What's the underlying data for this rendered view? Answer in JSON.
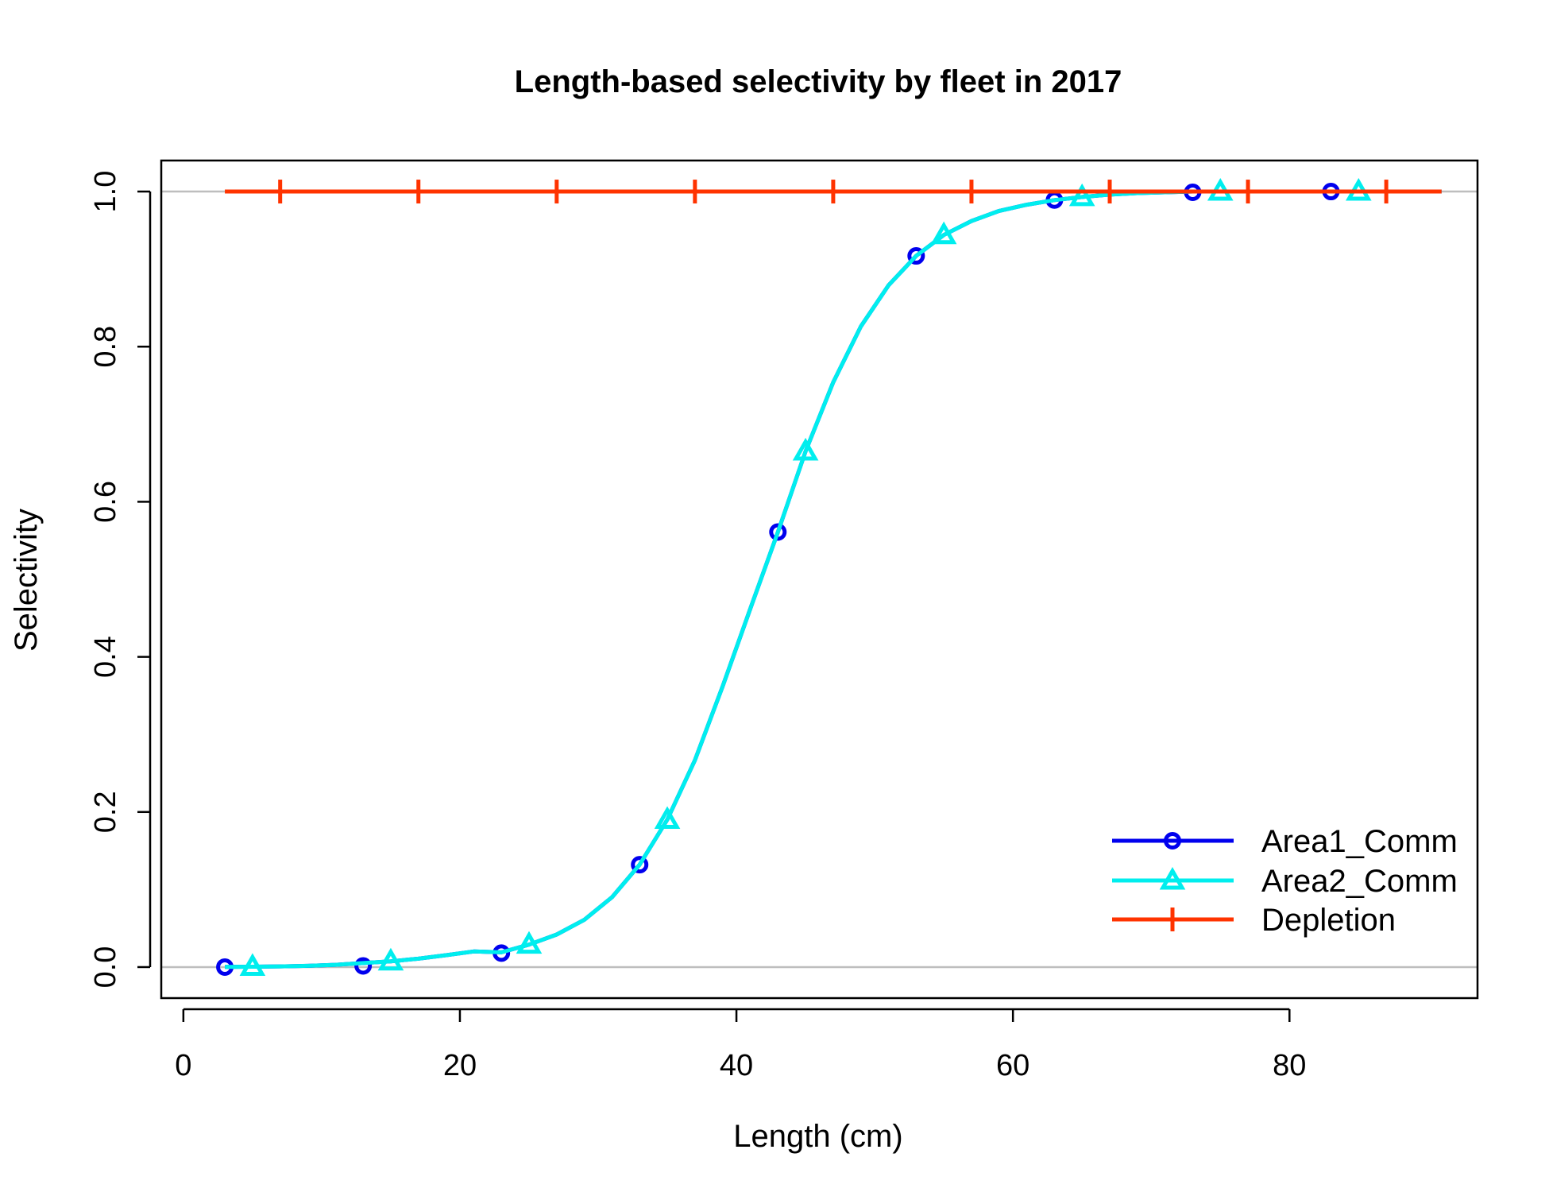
{
  "chart_data": {
    "type": "line",
    "title": "Length-based selectivity by fleet in 2017",
    "xlabel": "Length (cm)",
    "ylabel": "Selectivity",
    "xlim": [
      -1.6,
      93.6
    ],
    "ylim": [
      -0.04,
      1.04
    ],
    "x_ticks": [
      0,
      20,
      40,
      60,
      80
    ],
    "x_tick_labels": [
      "0",
      "20",
      "40",
      "60",
      "80"
    ],
    "y_ticks": [
      0,
      0.2,
      0.4,
      0.6,
      0.8,
      1.0
    ],
    "y_tick_labels": [
      "0.0",
      "0.2",
      "0.4",
      "0.6",
      "0.8",
      "1.0"
    ],
    "reference_lines": [
      0,
      1
    ],
    "legend_position": "bottom-right",
    "curve": {
      "x": [
        3,
        5,
        7,
        9,
        11,
        13,
        15,
        17,
        19,
        21,
        23,
        25,
        27,
        29,
        31,
        33,
        35,
        37,
        39,
        41,
        43,
        45,
        47,
        49,
        51,
        53,
        55,
        57,
        59,
        61,
        63,
        65,
        67,
        69,
        71,
        73,
        75,
        77,
        79,
        81,
        83,
        85,
        87,
        89,
        91
      ],
      "y": [
        0.0003,
        0.0005,
        0.0009,
        0.0016,
        0.0029,
        0.0052,
        0.0074,
        0.0108,
        0.0153,
        0.0201,
        0.019,
        0.029,
        0.042,
        0.061,
        0.09,
        0.132,
        0.19,
        0.267,
        0.362,
        0.462,
        0.561,
        0.665,
        0.754,
        0.826,
        0.879,
        0.917,
        0.944,
        0.962,
        0.975,
        0.983,
        0.989,
        0.993,
        0.996,
        0.998,
        0.999,
        1.0,
        1.0,
        1.0,
        1.0,
        1.0,
        1.0,
        1.0,
        1.0,
        1.0,
        1.0
      ]
    },
    "series": [
      {
        "name": "Area1_Comm",
        "color": "#0000ee",
        "marker": "circle",
        "x": [
          3,
          13,
          23,
          33,
          43,
          53,
          63,
          73,
          83
        ],
        "y": [
          0.0,
          0.0015,
          0.018,
          0.132,
          0.561,
          0.917,
          0.989,
          0.999,
          1.0
        ]
      },
      {
        "name": "Area2_Comm",
        "color": "#00eeee",
        "marker": "triangle",
        "x": [
          5,
          15,
          25,
          35,
          45,
          55,
          65,
          75,
          85
        ],
        "y": [
          0.0005,
          0.0074,
          0.029,
          0.19,
          0.665,
          0.944,
          0.993,
          1.0,
          1.0
        ]
      },
      {
        "name": "Depletion",
        "color": "#ff3300",
        "marker": "plus",
        "x_line": [
          3,
          91
        ],
        "x": [
          7,
          17,
          27,
          37,
          47,
          57,
          67,
          77,
          87
        ],
        "y": [
          1,
          1,
          1,
          1,
          1,
          1,
          1,
          1,
          1
        ]
      }
    ]
  }
}
